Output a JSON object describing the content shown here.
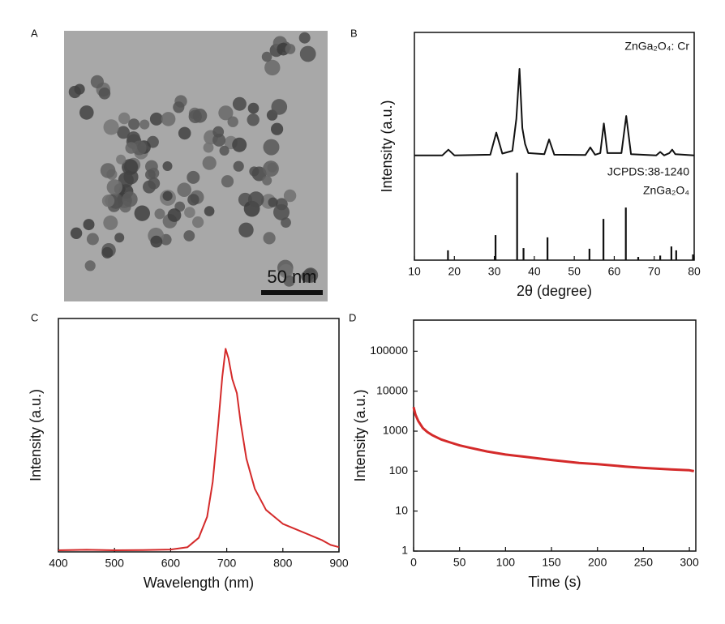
{
  "image": {
    "panel": "A",
    "scale_bar": "50 nm"
  },
  "chart_data": [
    {
      "type": "line",
      "panel": "B",
      "xlabel": "2θ (degree)",
      "ylabel": "Intensity (a.u.)",
      "xlim": [
        10,
        80
      ],
      "xticks": [
        10,
        20,
        30,
        40,
        50,
        60,
        70,
        80
      ],
      "ylim": [
        0,
        100
      ],
      "log": false,
      "annotations": [
        "ZnGa₂O₄: Cr",
        "JCPDS:38-1240",
        "ZnGa₂O₄"
      ],
      "series": [
        {
          "kind": "line",
          "color": "#111111",
          "x": [
            10,
            17,
            18.5,
            20,
            29,
            30.5,
            32,
            34.5,
            35.5,
            36.3,
            37,
            37.7,
            38.5,
            42.5,
            43.7,
            45,
            52.8,
            54,
            55.2,
            56.5,
            57.4,
            58.3,
            61.8,
            63,
            64.2,
            70.5,
            71.5,
            72.5,
            73.8,
            74.5,
            75.3,
            80
          ],
          "values": [
            46,
            46,
            48.5,
            46,
            46.3,
            56,
            46.8,
            48,
            62,
            84,
            58,
            51,
            47,
            46.5,
            53,
            46.3,
            46.2,
            49.5,
            46.3,
            47,
            60,
            47,
            47,
            63.3,
            46.5,
            46,
            47.5,
            46,
            47,
            48.5,
            46.5,
            46
          ]
        },
        {
          "kind": "stem",
          "color": "#111111",
          "x": [
            18.4,
            30.3,
            35.7,
            37.3,
            43.3,
            53.8,
            57.3,
            62.9,
            66,
            71.5,
            74.3,
            75.5,
            79.7
          ],
          "values": [
            4.3,
            11,
            38.4,
            5.3,
            10,
            5,
            18.1,
            23.1,
            1.4,
            2,
            6,
            4.3,
            2.5
          ]
        }
      ]
    },
    {
      "type": "line",
      "panel": "C",
      "xlabel": "Wavelength (nm)",
      "ylabel": "Intensity (a.u.)",
      "xlim": [
        400,
        900
      ],
      "xticks": [
        400,
        500,
        600,
        700,
        800,
        900
      ],
      "ylim": [
        0,
        100
      ],
      "log": false,
      "series": [
        {
          "kind": "line",
          "color": "#d42a2a",
          "x": [
            400,
            450,
            500,
            550,
            600,
            630,
            650,
            665,
            675,
            685,
            692,
            698,
            703,
            710,
            718,
            725,
            735,
            750,
            770,
            800,
            830,
            850,
            870,
            885,
            900
          ],
          "values": [
            0.7,
            0.9,
            0.7,
            0.8,
            1,
            2,
            6,
            15,
            30,
            55,
            75,
            87,
            83,
            74,
            68,
            55,
            40,
            27,
            18,
            12,
            9,
            7,
            5,
            3,
            2
          ]
        }
      ]
    },
    {
      "type": "line",
      "panel": "D",
      "xlabel": "Time (s)",
      "ylabel": "Intensity (a.u.)",
      "xlim": [
        0,
        307
      ],
      "xticks": [
        0,
        50,
        100,
        150,
        200,
        250,
        300
      ],
      "ylim": [
        1,
        600000
      ],
      "log": true,
      "yticks": [
        1,
        10,
        100,
        1000,
        10000,
        100000
      ],
      "series": [
        {
          "kind": "line",
          "color": "#d42a2a",
          "x": [
            0,
            2,
            5,
            10,
            15,
            20,
            30,
            40,
            50,
            60,
            80,
            100,
            120,
            150,
            180,
            200,
            230,
            250,
            280,
            300,
            305
          ],
          "values": [
            4000,
            2600,
            1800,
            1200,
            950,
            800,
            620,
            520,
            440,
            390,
            310,
            260,
            230,
            190,
            160,
            150,
            130,
            120,
            110,
            105,
            100
          ]
        }
      ]
    }
  ]
}
